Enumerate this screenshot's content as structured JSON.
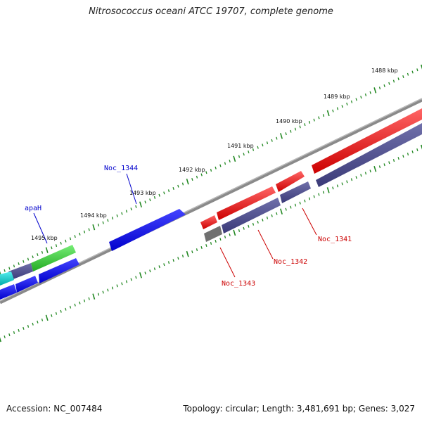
{
  "title": "Nitrosococcus oceani ATCC 19707, complete genome",
  "footer": {
    "accession": "Accession: NC_007484",
    "topology": "Topology: circular; Length: 3,481,691 bp; Genes: 3,027"
  },
  "scale_ticks": [
    "1488 kbp",
    "1489 kbp",
    "1490 kbp",
    "1491 kbp",
    "1492 kbp",
    "1493 kbp",
    "1494 kbp",
    "1495 kbp"
  ],
  "gene_labels": [
    {
      "text": "Noc_1344",
      "color": "#0000cc"
    },
    {
      "text": "apaH",
      "color": "#0000cc"
    },
    {
      "text": "Noc_1341",
      "color": "#cc0000"
    },
    {
      "text": "Noc_1342",
      "color": "#cc0000"
    },
    {
      "text": "Noc_1343",
      "color": "#cc0000"
    }
  ],
  "colors": {
    "forward_cds": "#ff0000",
    "reverse_cds": "#0000ff",
    "cog": "#4a4a8c",
    "gc": "#666666",
    "tick": "#228822",
    "cyan_feature": "#00cccc",
    "green_feature": "#33cc33"
  }
}
